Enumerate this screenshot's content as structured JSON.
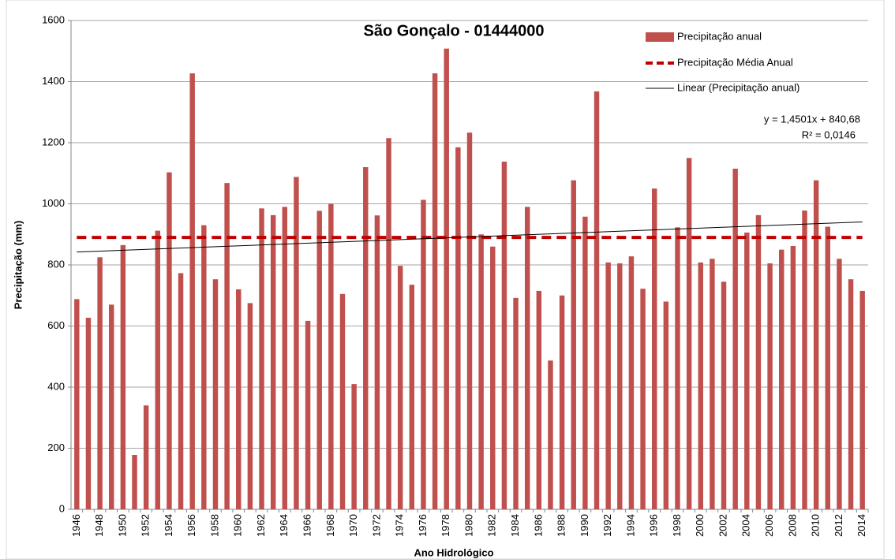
{
  "chart_data": {
    "type": "bar",
    "title": "São Gonçalo - 01444000",
    "x_label": "Ano Hidrológico",
    "y_label": "Precipitação (mm)",
    "categories": [
      "1946",
      null,
      "1948",
      null,
      "1950",
      null,
      "1952",
      null,
      "1954",
      null,
      "1956",
      null,
      "1958",
      null,
      "1960",
      null,
      "1962",
      null,
      "1964",
      null,
      "1966",
      null,
      "1968",
      null,
      "1970",
      null,
      "1972",
      null,
      "1974",
      null,
      "1976",
      null,
      "1978",
      null,
      "1980",
      null,
      "1982",
      null,
      "1984",
      null,
      "1986",
      null,
      "1988",
      null,
      "1990",
      null,
      "1992",
      null,
      "1994",
      null,
      "1996",
      null,
      "1998",
      null,
      "2000",
      null,
      "2002",
      null,
      "2004",
      null,
      "2006",
      null,
      "2008",
      null,
      "2010",
      null,
      "2012",
      null,
      "2014"
    ],
    "series": [
      {
        "name": "Precipitação anual",
        "color": "#c0504d",
        "values": [
          688,
          627,
          825,
          670,
          865,
          178,
          340,
          912,
          1103,
          773,
          1427,
          930,
          753,
          1068,
          720,
          675,
          985,
          963,
          990,
          1088,
          617,
          977,
          1000,
          705,
          410,
          1120,
          962,
          1215,
          797,
          735,
          1013,
          1427,
          1508,
          1185,
          1233,
          900,
          860,
          1138,
          692,
          990,
          715,
          487,
          700,
          1077,
          958,
          1368,
          808,
          805,
          828,
          722,
          1050,
          680,
          923,
          1150,
          808,
          820,
          745,
          1115,
          906,
          963,
          805,
          850,
          862,
          978,
          1077,
          925,
          820,
          753,
          715
        ]
      }
    ],
    "mean": {
      "name": "Precipitação Média Anual",
      "color": "#c00000",
      "value": 890
    },
    "trend": {
      "name": "Linear (Precipitação anual)",
      "color": "#000000",
      "slope": 1.4501,
      "intercept": 840.68,
      "equation_label": "y = 1,4501x + 840,68",
      "r2_label": "R² = 0,0146"
    },
    "ylim": [
      0,
      1600
    ],
    "yticks": [
      0,
      200,
      400,
      600,
      800,
      1000,
      1200,
      1400,
      1600
    ],
    "grid": true
  }
}
